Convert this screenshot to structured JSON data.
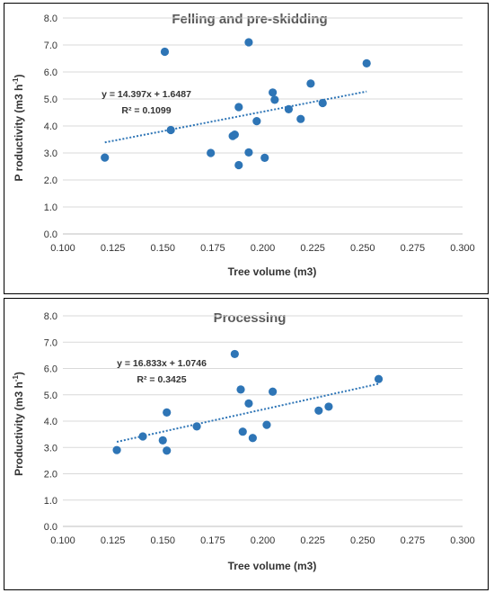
{
  "chart_data": [
    {
      "type": "scatter",
      "title": "Felling and pre-skidding",
      "xlabel": "Tree volume (m3)",
      "ylabel": "P roductivity (m3 h",
      "ylabel_sup": "-1",
      "ylabel_end": ")",
      "xlim": [
        0.1,
        0.3
      ],
      "ylim": [
        0.0,
        8.0
      ],
      "xticks": [
        "0.100",
        "0.125",
        "0.150",
        "0.175",
        "0.200",
        "0.225",
        "0.250",
        "0.275",
        "0.300"
      ],
      "yticks": [
        "0.0",
        "1.0",
        "2.0",
        "3.0",
        "4.0",
        "5.0",
        "6.0",
        "7.0",
        "8.0"
      ],
      "grid": "horizontal",
      "points": [
        {
          "x": 0.121,
          "y": 2.83
        },
        {
          "x": 0.151,
          "y": 6.75
        },
        {
          "x": 0.154,
          "y": 3.85
        },
        {
          "x": 0.174,
          "y": 3.0
        },
        {
          "x": 0.185,
          "y": 3.63
        },
        {
          "x": 0.186,
          "y": 3.68
        },
        {
          "x": 0.188,
          "y": 4.7
        },
        {
          "x": 0.188,
          "y": 2.55
        },
        {
          "x": 0.193,
          "y": 7.1
        },
        {
          "x": 0.193,
          "y": 3.02
        },
        {
          "x": 0.197,
          "y": 4.18
        },
        {
          "x": 0.201,
          "y": 2.82
        },
        {
          "x": 0.205,
          "y": 5.24
        },
        {
          "x": 0.206,
          "y": 4.97
        },
        {
          "x": 0.213,
          "y": 4.62
        },
        {
          "x": 0.219,
          "y": 4.26
        },
        {
          "x": 0.224,
          "y": 5.57
        },
        {
          "x": 0.23,
          "y": 4.85
        },
        {
          "x": 0.252,
          "y": 6.32
        }
      ],
      "trendline": {
        "slope": 14.397,
        "intercept": 1.6487,
        "x_start": 0.121,
        "x_end": 0.252
      },
      "equation": "y = 14.397x + 1.6487",
      "r2": "R² = 0.1099"
    },
    {
      "type": "scatter",
      "title": "Processing",
      "xlabel": "Tree volume (m3)",
      "ylabel": "Productivity (m3 h",
      "ylabel_sup": "-1",
      "ylabel_end": ")",
      "xlim": [
        0.1,
        0.3
      ],
      "ylim": [
        0.0,
        8.0
      ],
      "xticks": [
        "0.100",
        "0.125",
        "0.150",
        "0.175",
        "0.200",
        "0.225",
        "0.250",
        "0.275",
        "0.300"
      ],
      "yticks": [
        "0.0",
        "1.0",
        "2.0",
        "3.0",
        "4.0",
        "5.0",
        "6.0",
        "7.0",
        "8.0"
      ],
      "grid": "horizontal",
      "points": [
        {
          "x": 0.127,
          "y": 2.9
        },
        {
          "x": 0.14,
          "y": 3.42
        },
        {
          "x": 0.15,
          "y": 3.27
        },
        {
          "x": 0.152,
          "y": 4.33
        },
        {
          "x": 0.152,
          "y": 2.88
        },
        {
          "x": 0.167,
          "y": 3.8
        },
        {
          "x": 0.186,
          "y": 6.55
        },
        {
          "x": 0.189,
          "y": 5.2
        },
        {
          "x": 0.19,
          "y": 3.6
        },
        {
          "x": 0.193,
          "y": 4.67
        },
        {
          "x": 0.195,
          "y": 3.36
        },
        {
          "x": 0.202,
          "y": 3.86
        },
        {
          "x": 0.205,
          "y": 5.12
        },
        {
          "x": 0.228,
          "y": 4.4
        },
        {
          "x": 0.233,
          "y": 4.55
        },
        {
          "x": 0.258,
          "y": 5.6
        }
      ],
      "trendline": {
        "slope": 16.833,
        "intercept": 1.0746,
        "x_start": 0.127,
        "x_end": 0.258
      },
      "equation": "y = 16.833x + 1.0746",
      "r2": "R² = 0.3425"
    }
  ],
  "colors": {
    "marker": "#2e75b6",
    "grid": "#d9d9d9",
    "title": "#595959",
    "text": "#333333"
  }
}
